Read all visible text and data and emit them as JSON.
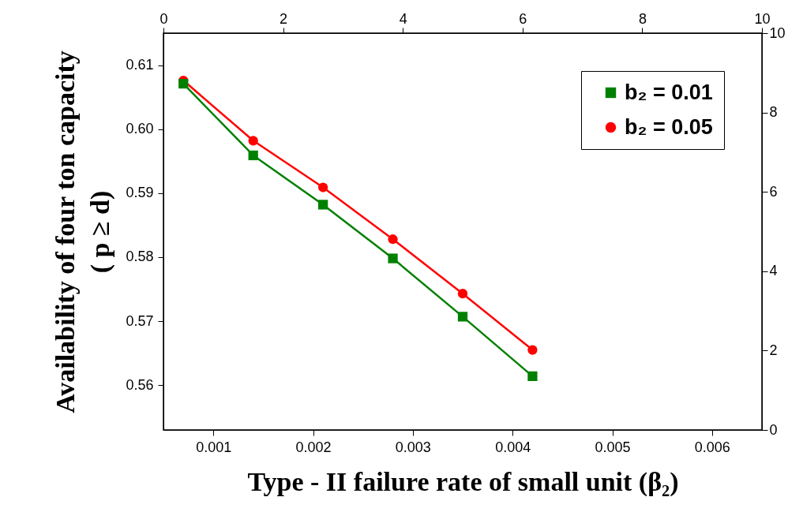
{
  "chart_data": {
    "type": "line",
    "xlabel": "Type - II failure rate of small unit (β₂)",
    "ylabel": "Availability of four ton capacity\n( p ≥ d)",
    "x": [
      0.0007,
      0.0014,
      0.0021,
      0.0028,
      0.0035,
      0.0042
    ],
    "series": [
      {
        "name": "b₂ = 0.01",
        "color": "#008000",
        "marker": "square",
        "values": [
          0.6071,
          0.5959,
          0.5882,
          0.5798,
          0.5707,
          0.5614
        ]
      },
      {
        "name": "b₂ = 0.05",
        "color": "#ff0000",
        "marker": "circle",
        "values": [
          0.6076,
          0.5982,
          0.5909,
          0.5828,
          0.5743,
          0.5655
        ]
      }
    ],
    "xlim": [
      0.0005,
      0.0065
    ],
    "xticks": [
      0.001,
      0.002,
      0.003,
      0.004,
      0.005,
      0.006
    ],
    "ylim": [
      0.553,
      0.615
    ],
    "yticks": [
      0.56,
      0.57,
      0.58,
      0.59,
      {
        "value": 0.6,
        "label": "0.60"
      },
      0.61
    ],
    "x2lim": [
      0,
      10
    ],
    "x2ticks": [
      0,
      2,
      4,
      6,
      8,
      10
    ],
    "y2lim": [
      0,
      10
    ],
    "y2ticks": [
      0,
      2,
      4,
      6,
      8,
      10
    ],
    "legend": "top right",
    "grid": false,
    "line_style": "solid"
  }
}
